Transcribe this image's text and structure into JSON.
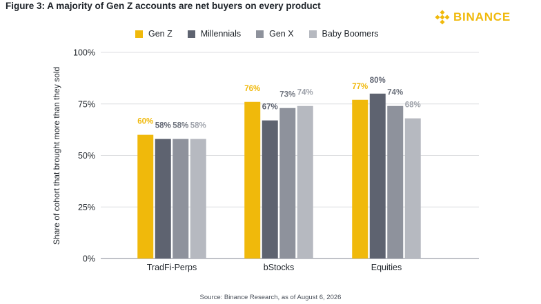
{
  "figure_title": "Figure 3: A majority of Gen Z accounts are net buyers on every product",
  "logo": {
    "text": "BINANCE",
    "icon": "binance-diamond-icon",
    "color": "#F0B90B"
  },
  "source": "Source: Binance Research, as of August 6, 2026",
  "chart_data": {
    "type": "bar",
    "title": "Figure 3: A majority of Gen Z accounts are net buyers on every product",
    "xlabel": "",
    "ylabel": "Share of cohort that brought more than they sold",
    "ylim": [
      0,
      100
    ],
    "yticks": [
      0,
      25,
      50,
      75,
      100
    ],
    "ytick_labels": [
      "0%",
      "25%",
      "50%",
      "75%",
      "100%"
    ],
    "grid": "horizontal",
    "legend_position": "top",
    "categories": [
      "TradFi-Perps",
      "bStocks",
      "Equities"
    ],
    "series": [
      {
        "name": "Gen Z",
        "color": "#F0B90B",
        "label_color": "#F0B90B",
        "values": [
          60,
          76,
          77
        ],
        "labels": [
          "60%",
          "76%",
          "77%"
        ]
      },
      {
        "name": "Millennials",
        "color": "#5E6370",
        "label_color": "#5E6370",
        "values": [
          58,
          67,
          80
        ],
        "labels": [
          "58%",
          "67%",
          "80%"
        ]
      },
      {
        "name": "Gen X",
        "color": "#8E929C",
        "label_color": "#6E737D",
        "values": [
          58,
          73,
          74
        ],
        "labels": [
          "58%",
          "73%",
          "74%"
        ]
      },
      {
        "name": "Baby Boomers",
        "color": "#B6B9C0",
        "label_color": "#9EA2AA",
        "values": [
          58,
          74,
          68
        ],
        "labels": [
          "58%",
          "74%",
          "68%"
        ]
      }
    ]
  }
}
